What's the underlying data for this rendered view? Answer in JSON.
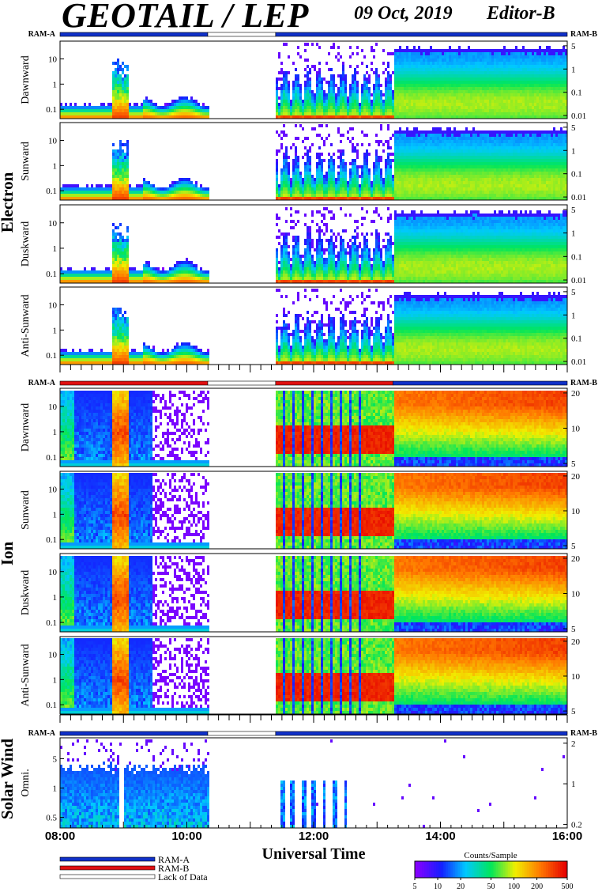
{
  "header": {
    "title": "GEOTAIL / LEP",
    "date": "09 Oct, 2019",
    "editor": "Editor-B"
  },
  "colors": {
    "ram_a": "#1030c8",
    "ram_b": "#e01010",
    "no_data": "#ffffff"
  },
  "chart_data": {
    "type": "heatmap",
    "xlabel": "Universal Time",
    "x_ticks": [
      "08:00",
      "10:00",
      "12:00",
      "14:00",
      "16:00"
    ],
    "x_range_hours": [
      8,
      16
    ],
    "groups": [
      {
        "name": "Electron",
        "panels": [
          {
            "label": "Dawnward",
            "left_ticks": [
              "10",
              "1",
              "0.1"
            ],
            "right_ticks": [
              "5",
              "1",
              "0.1",
              "0.01"
            ]
          },
          {
            "label": "Sunward",
            "left_ticks": [
              "10",
              "1",
              "0.1"
            ],
            "right_ticks": [
              "5",
              "1",
              "0.1",
              "0.01"
            ]
          },
          {
            "label": "Duskward",
            "left_ticks": [
              "10",
              "1",
              "0.1"
            ],
            "right_ticks": [
              "5",
              "1",
              "0.1",
              "0.01"
            ]
          },
          {
            "label": "Anti-Sunward",
            "left_ticks": [
              "10",
              "1",
              "0.1"
            ],
            "right_ticks": [
              "5",
              "1",
              "0.1",
              "0.01"
            ]
          }
        ]
      },
      {
        "name": "Ion",
        "panels": [
          {
            "label": "Dawnward",
            "left_ticks": [
              "10",
              "1",
              "0.1"
            ],
            "right_ticks": [
              "20",
              "10",
              "5"
            ]
          },
          {
            "label": "Sunward",
            "left_ticks": [
              "10",
              "1",
              "0.1"
            ],
            "right_ticks": [
              "20",
              "10",
              "5"
            ]
          },
          {
            "label": "Duskward",
            "left_ticks": [
              "10",
              "1",
              "0.1"
            ],
            "right_ticks": [
              "20",
              "10",
              "5"
            ]
          },
          {
            "label": "Anti-Sunward",
            "left_ticks": [
              "10",
              "1",
              "0.1"
            ],
            "right_ticks": [
              "20",
              "10",
              "5"
            ]
          }
        ]
      },
      {
        "name": "Solar Wind",
        "panels": [
          {
            "label": "Omni.",
            "left_ticks": [
              "5",
              "1",
              "0.5"
            ],
            "right_ticks": [
              "2",
              "1",
              "0.2"
            ]
          }
        ]
      }
    ],
    "ram_segments": [
      {
        "start": 8.0,
        "end": 10.33,
        "mode": "RAM-A"
      },
      {
        "start": 10.33,
        "end": 11.4,
        "mode": "Lack of Data"
      },
      {
        "start": 11.4,
        "end": 16.0,
        "mode": "RAM-A"
      }
    ],
    "ion_ram_segments": [
      {
        "start": 8.0,
        "end": 10.33,
        "mode": "RAM-B"
      },
      {
        "start": 10.33,
        "end": 11.4,
        "mode": "Lack of Data"
      },
      {
        "start": 11.4,
        "end": 13.25,
        "mode": "RAM-B"
      },
      {
        "start": 13.25,
        "end": 16.0,
        "mode": "RAM-A"
      }
    ],
    "data_gaps": [
      [
        10.33,
        11.4
      ]
    ],
    "ram_left_label": "RAM-A",
    "ram_right_label": "RAM-B",
    "legend": {
      "items": [
        "RAM-A",
        "RAM-B",
        "Lack of Data"
      ]
    },
    "colorbar": {
      "title": "Counts/Sample",
      "ticks": [
        "5",
        "10",
        "20",
        "50",
        "100",
        "200",
        "500"
      ],
      "range": [
        5,
        500
      ],
      "scale": "log"
    }
  }
}
